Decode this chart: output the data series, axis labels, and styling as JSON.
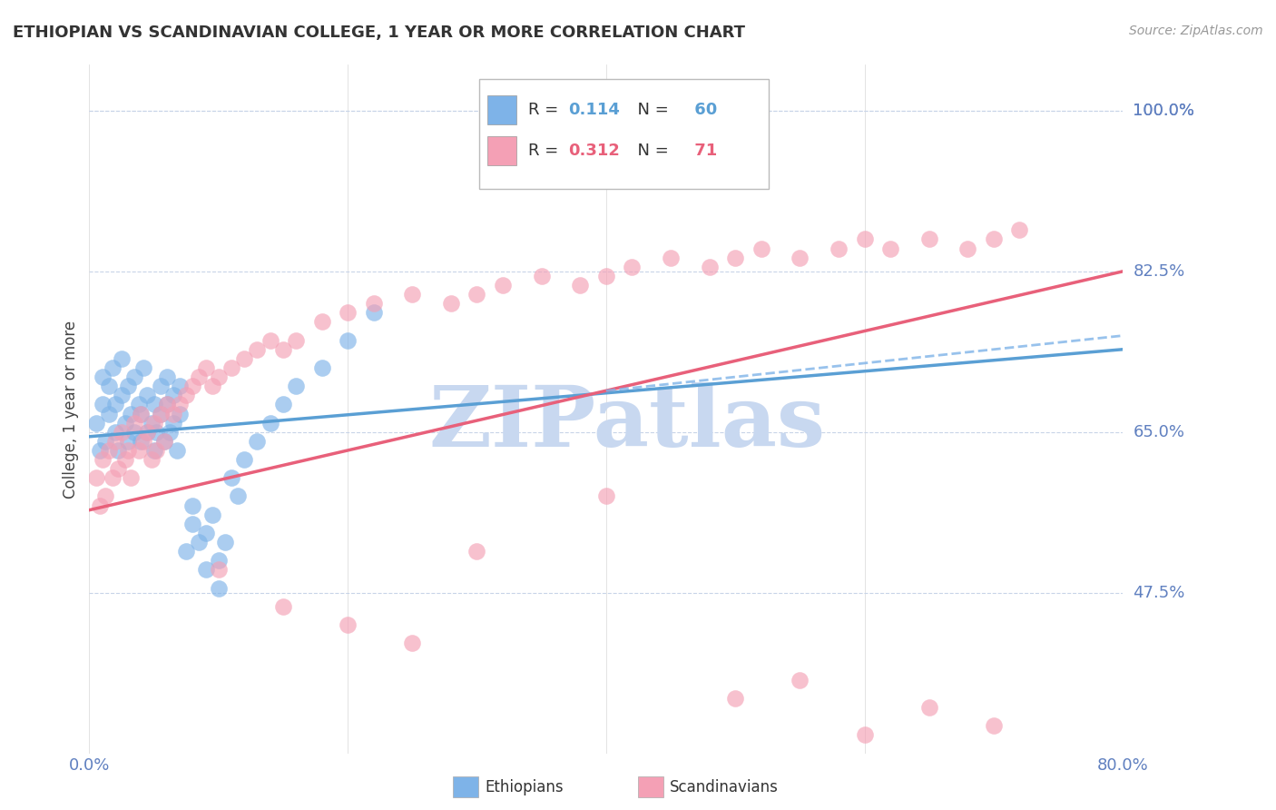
{
  "title": "ETHIOPIAN VS SCANDINAVIAN COLLEGE, 1 YEAR OR MORE CORRELATION CHART",
  "source": "Source: ZipAtlas.com",
  "ylabel": "College, 1 year or more",
  "xlim": [
    0.0,
    0.8
  ],
  "ylim": [
    0.3,
    1.05
  ],
  "ytick_positions": [
    0.475,
    0.65,
    0.825,
    1.0
  ],
  "ytick_labels": [
    "47.5%",
    "65.0%",
    "82.5%",
    "100.0%"
  ],
  "ethiopian_R": 0.114,
  "ethiopian_N": 60,
  "scandinavian_R": 0.312,
  "scandinavian_N": 71,
  "scatter_blue_color": "#7eb3e8",
  "scatter_pink_color": "#f4a0b5",
  "line_blue_color": "#5a9fd4",
  "line_pink_color": "#e8607a",
  "watermark_color": "#c8d8f0",
  "title_color": "#333333",
  "tick_label_color": "#6080c0",
  "background_color": "#ffffff",
  "ethiopian_scatter_x": [
    0.005,
    0.008,
    0.01,
    0.01,
    0.012,
    0.015,
    0.015,
    0.018,
    0.02,
    0.02,
    0.022,
    0.025,
    0.025,
    0.028,
    0.03,
    0.03,
    0.032,
    0.035,
    0.035,
    0.038,
    0.04,
    0.04,
    0.042,
    0.045,
    0.045,
    0.048,
    0.05,
    0.05,
    0.052,
    0.055,
    0.055,
    0.058,
    0.06,
    0.06,
    0.062,
    0.065,
    0.065,
    0.068,
    0.07,
    0.07,
    0.075,
    0.08,
    0.08,
    0.085,
    0.09,
    0.09,
    0.095,
    0.1,
    0.1,
    0.105,
    0.11,
    0.115,
    0.12,
    0.13,
    0.14,
    0.15,
    0.16,
    0.18,
    0.2,
    0.22
  ],
  "ethiopian_scatter_y": [
    0.66,
    0.63,
    0.68,
    0.71,
    0.64,
    0.7,
    0.67,
    0.72,
    0.65,
    0.68,
    0.63,
    0.69,
    0.73,
    0.66,
    0.64,
    0.7,
    0.67,
    0.65,
    0.71,
    0.68,
    0.64,
    0.67,
    0.72,
    0.65,
    0.69,
    0.66,
    0.63,
    0.68,
    0.65,
    0.7,
    0.67,
    0.64,
    0.71,
    0.68,
    0.65,
    0.69,
    0.66,
    0.63,
    0.7,
    0.67,
    0.52,
    0.55,
    0.57,
    0.53,
    0.5,
    0.54,
    0.56,
    0.51,
    0.48,
    0.53,
    0.6,
    0.58,
    0.62,
    0.64,
    0.66,
    0.68,
    0.7,
    0.72,
    0.75,
    0.78
  ],
  "scandinavian_scatter_x": [
    0.005,
    0.008,
    0.01,
    0.012,
    0.015,
    0.018,
    0.02,
    0.022,
    0.025,
    0.028,
    0.03,
    0.032,
    0.035,
    0.038,
    0.04,
    0.042,
    0.045,
    0.048,
    0.05,
    0.052,
    0.055,
    0.058,
    0.06,
    0.065,
    0.07,
    0.075,
    0.08,
    0.085,
    0.09,
    0.095,
    0.1,
    0.11,
    0.12,
    0.13,
    0.14,
    0.15,
    0.16,
    0.18,
    0.2,
    0.22,
    0.25,
    0.28,
    0.3,
    0.32,
    0.35,
    0.38,
    0.4,
    0.42,
    0.45,
    0.48,
    0.5,
    0.52,
    0.55,
    0.58,
    0.6,
    0.62,
    0.65,
    0.68,
    0.7,
    0.72,
    0.1,
    0.15,
    0.2,
    0.25,
    0.3,
    0.4,
    0.5,
    0.55,
    0.6,
    0.65,
    0.7
  ],
  "scandinavian_scatter_y": [
    0.6,
    0.57,
    0.62,
    0.58,
    0.63,
    0.6,
    0.64,
    0.61,
    0.65,
    0.62,
    0.63,
    0.6,
    0.66,
    0.63,
    0.67,
    0.64,
    0.65,
    0.62,
    0.66,
    0.63,
    0.67,
    0.64,
    0.68,
    0.67,
    0.68,
    0.69,
    0.7,
    0.71,
    0.72,
    0.7,
    0.71,
    0.72,
    0.73,
    0.74,
    0.75,
    0.74,
    0.75,
    0.77,
    0.78,
    0.79,
    0.8,
    0.79,
    0.8,
    0.81,
    0.82,
    0.81,
    0.82,
    0.83,
    0.84,
    0.83,
    0.84,
    0.85,
    0.84,
    0.85,
    0.86,
    0.85,
    0.86,
    0.85,
    0.86,
    0.87,
    0.5,
    0.46,
    0.44,
    0.42,
    0.52,
    0.58,
    0.36,
    0.38,
    0.32,
    0.35,
    0.33
  ],
  "eth_line_x0": 0.0,
  "eth_line_x1": 0.8,
  "eth_line_y0": 0.645,
  "eth_line_y1": 0.74,
  "sca_line_x0": 0.0,
  "sca_line_x1": 0.8,
  "sca_line_y0": 0.565,
  "sca_line_y1": 0.825,
  "legend_box_color": "#ffffff",
  "legend_border_color": "#cccccc"
}
